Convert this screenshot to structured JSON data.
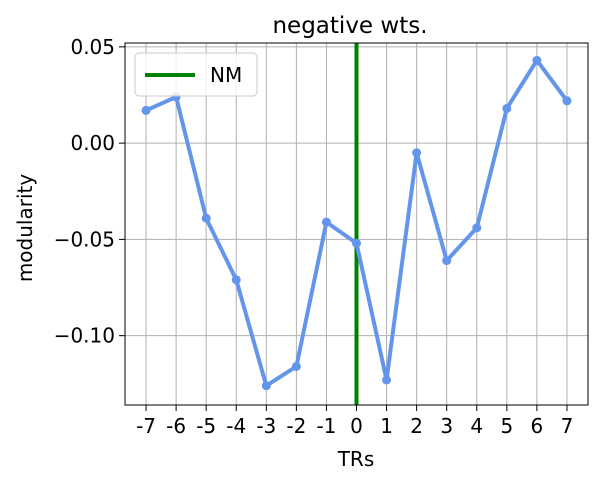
{
  "chart_data": {
    "type": "line",
    "title": "negative wts.",
    "xlabel": "TRs",
    "ylabel": "modularity",
    "categories": [
      "-7",
      "-6",
      "-5",
      "-4",
      "-3",
      "-2",
      "-1",
      "0",
      "1",
      "2",
      "3",
      "4",
      "5",
      "6",
      "7"
    ],
    "x": [
      -7,
      -6,
      -5,
      -4,
      -3,
      -2,
      -1,
      0,
      1,
      2,
      3,
      4,
      5,
      6,
      7
    ],
    "series": [
      {
        "values": [
          0.017,
          0.024,
          -0.039,
          -0.071,
          -0.126,
          -0.116,
          -0.041,
          -0.052,
          -0.123,
          -0.005,
          -0.061,
          -0.044,
          0.018,
          0.043,
          0.022
        ],
        "color": "#6495ED"
      }
    ],
    "yticks": [
      0.05,
      0.0,
      -0.05,
      -0.1
    ],
    "ytick_labels": [
      "0.05",
      "0.00",
      "−0.05",
      "−0.10"
    ],
    "ylim": [
      -0.136,
      0.052
    ],
    "xlim": [
      -7.7,
      7.7
    ],
    "vline": {
      "x": 0,
      "label": "NM",
      "color": "#008000"
    },
    "legend": {
      "entries": [
        "NM"
      ],
      "placement": "upper left"
    },
    "grid": true
  }
}
